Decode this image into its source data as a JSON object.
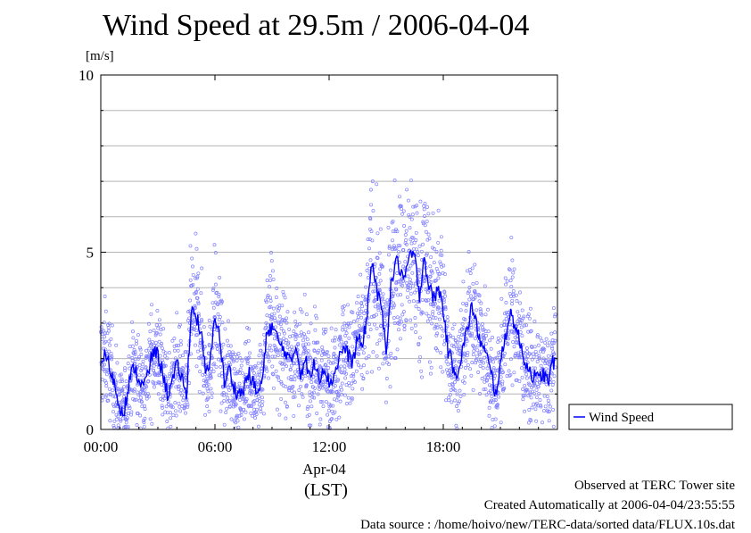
{
  "chart_data": {
    "type": "scatter",
    "title": "Wind Speed at 29.5m / 2006-04-04",
    "ylabel": "[m/s]",
    "ylim": [
      0,
      10
    ],
    "xlim_hours": [
      0,
      24
    ],
    "y_ticks": [
      "0",
      "5",
      "10"
    ],
    "x_ticks": [
      "00:00",
      "06:00",
      "12:00",
      "18:00"
    ],
    "x_date_label": "Apr-04",
    "x_axis_label": "(LST)",
    "grid": true,
    "legend_position": "right, bottom",
    "series": [
      {
        "name": "Wind Speed",
        "color": "#0000ff",
        "scatter_color": "#8080ff",
        "mean_line_hours": [
          0.0,
          0.25,
          0.5,
          0.75,
          1.0,
          1.25,
          1.5,
          1.75,
          2.0,
          2.25,
          2.5,
          2.75,
          3.0,
          3.25,
          3.5,
          3.75,
          4.0,
          4.25,
          4.5,
          4.75,
          5.0,
          5.25,
          5.5,
          5.75,
          6.0,
          6.25,
          6.5,
          6.75,
          7.0,
          7.25,
          7.5,
          7.75,
          8.0,
          8.25,
          8.5,
          8.75,
          9.0,
          9.25,
          9.5,
          9.75,
          10.0,
          10.25,
          10.5,
          10.75,
          11.0,
          11.25,
          11.5,
          11.75,
          12.0,
          12.25,
          12.5,
          12.75,
          13.0,
          13.25,
          13.5,
          13.75,
          14.0,
          14.25,
          14.5,
          14.75,
          15.0,
          15.25,
          15.5,
          15.75,
          16.0,
          16.25,
          16.5,
          16.75,
          17.0,
          17.25,
          17.5,
          17.75,
          18.0,
          18.25,
          18.5,
          18.75,
          19.0,
          19.25,
          19.5,
          19.75,
          20.0,
          20.25,
          20.5,
          20.75,
          21.0,
          21.25,
          21.5,
          21.75,
          22.0,
          22.25,
          22.5,
          22.75,
          23.0,
          23.25,
          23.5,
          23.75
        ],
        "mean_line_values": [
          2.0,
          2.1,
          1.7,
          1.2,
          0.6,
          0.6,
          1.3,
          1.8,
          1.4,
          1.2,
          1.6,
          2.2,
          2.1,
          1.6,
          1.0,
          1.3,
          1.8,
          1.5,
          0.9,
          3.4,
          3.2,
          2.8,
          1.6,
          1.8,
          3.3,
          2.6,
          1.3,
          1.7,
          1.2,
          1.0,
          1.1,
          1.6,
          1.3,
          1.0,
          1.4,
          2.8,
          2.9,
          2.6,
          2.3,
          2.2,
          1.8,
          2.4,
          1.6,
          2.0,
          1.4,
          1.9,
          1.5,
          1.8,
          1.3,
          1.5,
          2.0,
          2.3,
          2.1,
          1.9,
          2.6,
          2.3,
          3.3,
          4.8,
          3.9,
          3.4,
          2.3,
          4.0,
          4.8,
          4.5,
          4.2,
          5.0,
          4.8,
          3.8,
          4.9,
          4.0,
          3.7,
          4.0,
          3.4,
          2.2,
          1.8,
          1.6,
          2.2,
          2.8,
          3.5,
          2.9,
          2.4,
          2.1,
          1.6,
          1.0,
          1.8,
          2.6,
          3.3,
          3.0,
          2.5,
          2.0,
          1.7,
          1.5,
          1.4,
          1.6,
          1.3,
          1.9
        ]
      }
    ]
  },
  "notes": {
    "observed": "Observed at TERC Tower site",
    "created": "Created Automatically at 2006-04-04/23:55:55",
    "source": "Data source : /home/hoivo/new/TERC-data/sorted  data/FLUX.10s.dat"
  }
}
